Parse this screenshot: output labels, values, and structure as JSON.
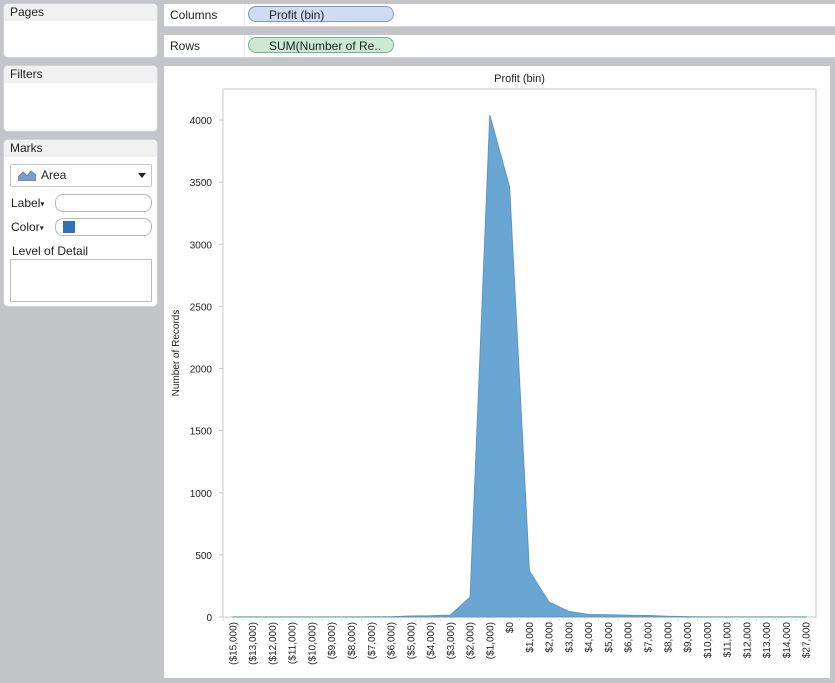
{
  "pages": {
    "title": "Pages"
  },
  "filters": {
    "title": "Filters"
  },
  "marks": {
    "title": "Marks",
    "mark_type": "Area",
    "label_button": "Label",
    "color_button": "Color",
    "level_of_detail": "Level of Detail",
    "color_swatch": "#2f72b5"
  },
  "shelves": {
    "columns_label": "Columns",
    "columns_pill": "Profit (bin)",
    "rows_label": "Rows",
    "rows_pill": "SUM(Number of Re.."
  },
  "chart_data": {
    "type": "area",
    "title": "Profit (bin)",
    "xlabel": "",
    "ylabel": "Number of Records",
    "ylim": [
      0,
      4250
    ],
    "yticks": [
      0,
      500,
      1000,
      1500,
      2000,
      2500,
      3000,
      3500,
      4000
    ],
    "categories": [
      "($15,000)",
      "($13,000)",
      "($12,000)",
      "($11,000)",
      "($10,000)",
      "($9,000)",
      "($8,000)",
      "($7,000)",
      "($6,000)",
      "($5,000)",
      "($4,000)",
      "($3,000)",
      "($2,000)",
      "($1,000)",
      "$0",
      "$1,000",
      "$2,000",
      "$3,000",
      "$4,000",
      "$5,000",
      "$6,000",
      "$7,000",
      "$8,000",
      "$9,000",
      "$10,000",
      "$11,000",
      "$12,000",
      "$13,000",
      "$14,000",
      "$27,000"
    ],
    "values": [
      1,
      1,
      1,
      1,
      1,
      1,
      1,
      2,
      2,
      8,
      10,
      15,
      160,
      4040,
      3460,
      370,
      120,
      45,
      20,
      18,
      14,
      12,
      6,
      3,
      1,
      1,
      1,
      1,
      1,
      1
    ],
    "color": "#6aa6d4",
    "grid": false
  }
}
